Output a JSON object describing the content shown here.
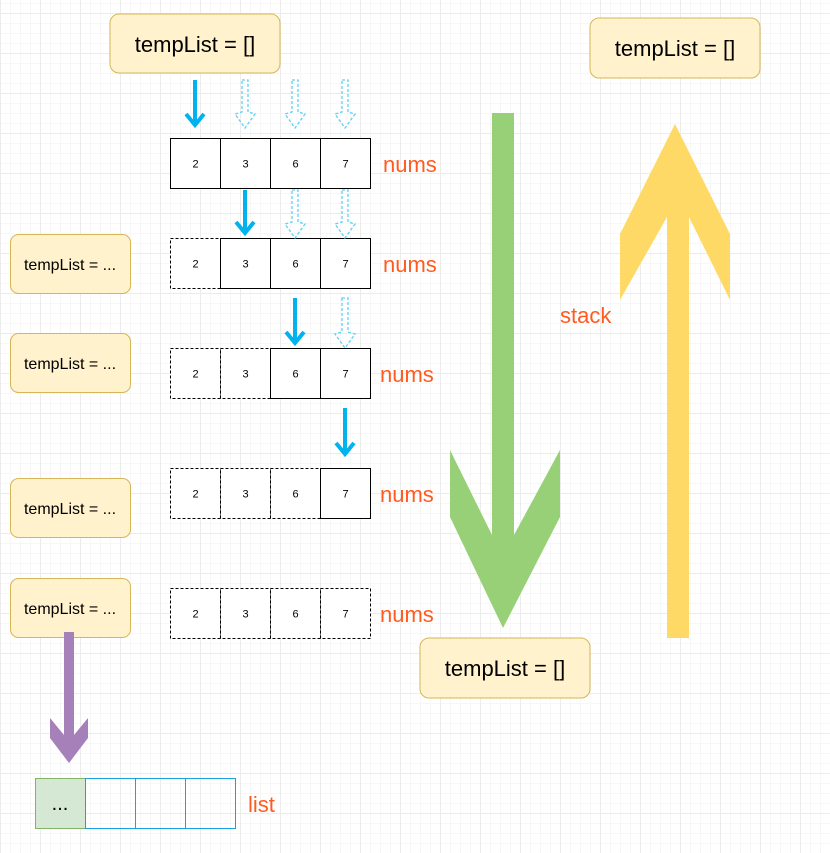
{
  "colors": {
    "note_fill": "#fff2cc",
    "note_stroke": "#d6b656",
    "label": "#ff5a1f",
    "blue_arrow": "#00b2ee",
    "green_arrow": "#97d077",
    "yellow_arrow": "#ffd966",
    "purple_arrow": "#a680b8",
    "list_first_fill": "#d5e8d4",
    "list_first_stroke": "#82b366",
    "list_stroke": "#1ba1e2"
  },
  "top_note": "tempList = []",
  "top_right_note": "tempList = []",
  "bottom_note": "tempList = []",
  "nums_values": [
    "2",
    "3",
    "6",
    "7"
  ],
  "nums_label": "nums",
  "rows": [
    {
      "note": "",
      "dashed_cells": 0
    },
    {
      "note": "tempList = ...",
      "dashed_cells": 1
    },
    {
      "note": "tempList = ...",
      "dashed_cells": 2
    },
    {
      "note": "tempList = ...",
      "dashed_cells": 3
    },
    {
      "note": "tempList = ...",
      "dashed_cells": 4
    }
  ],
  "stack_label": "stack",
  "list": {
    "first_cell": "...",
    "label": "list"
  },
  "icons": {
    "down": "arrow-down-icon",
    "up": "arrow-up-icon"
  }
}
